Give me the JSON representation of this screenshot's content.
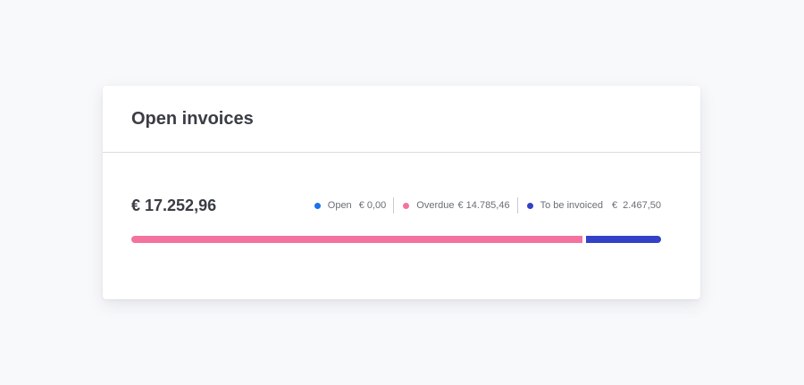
{
  "card": {
    "title": "Open invoices",
    "total": "€ 17.252,96"
  },
  "legend": [
    {
      "label": "Open",
      "value": "€ 0,00",
      "color": "#1a73e8"
    },
    {
      "label": "Overdue",
      "value": "€ 14.785,46",
      "color": "#f472a0"
    },
    {
      "label": "To be invoiced",
      "value": "€  2.467,50",
      "color": "#3341c6"
    }
  ],
  "progress": {
    "open_fraction": 0.0,
    "overdue_fraction": 0.857,
    "to_be_invoiced_fraction": 0.143
  }
}
